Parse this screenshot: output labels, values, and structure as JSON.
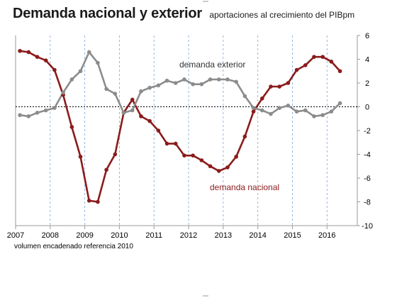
{
  "colors": {
    "nacional": "#8b1b1b",
    "exterior": "#8c8c8c",
    "gridline": "#7aa6d6",
    "zeroline": "#000000",
    "frame": "#9a9a9a"
  },
  "chart_data": {
    "type": "line",
    "title": "Demanda nacional y exterior",
    "subtitle": "aportaciones al crecimiento del PIBpm",
    "xlabel": "",
    "ylabel": "",
    "footnote": "volumen encadenado referencia 2010",
    "xlim": [
      2007.0,
      2016.875
    ],
    "ylim": [
      -10,
      6
    ],
    "y_ticks": [
      6,
      4,
      2,
      0,
      -2,
      -4,
      -6,
      -8,
      -10
    ],
    "year_ticks": [
      2007,
      2008,
      2009,
      2010,
      2011,
      2012,
      2013,
      2014,
      2015,
      2016
    ],
    "x_tick_labels": [
      "2007",
      "2008",
      "2009",
      "2010",
      "2011",
      "2012",
      "2013",
      "2014",
      "2015",
      "2016"
    ],
    "y_axis_side": "right",
    "grid": "vertical dashed at year boundaries",
    "reference_line": 0,
    "x_quarters": [
      2007.125,
      2007.375,
      2007.625,
      2007.875,
      2008.125,
      2008.375,
      2008.625,
      2008.875,
      2009.125,
      2009.375,
      2009.625,
      2009.875,
      2010.125,
      2010.375,
      2010.625,
      2010.875,
      2011.125,
      2011.375,
      2011.625,
      2011.875,
      2012.125,
      2012.375,
      2012.625,
      2012.875,
      2013.125,
      2013.375,
      2013.625,
      2013.875,
      2014.125,
      2014.375,
      2014.625,
      2014.875,
      2015.125,
      2015.375,
      2015.625,
      2015.875,
      2016.125,
      2016.375
    ],
    "series": [
      {
        "name": "demanda nacional",
        "color_key": "nacional",
        "values": [
          4.7,
          4.6,
          4.2,
          3.9,
          3.1,
          1.0,
          -1.7,
          -4.2,
          -7.9,
          -8.0,
          -5.3,
          -4.0,
          -0.5,
          0.6,
          -0.8,
          -1.2,
          -2.0,
          -3.1,
          -3.1,
          -4.1,
          -4.1,
          -4.5,
          -5.0,
          -5.4,
          -5.1,
          -4.2,
          -2.5,
          -0.4,
          0.7,
          1.7,
          1.7,
          2.0,
          3.1,
          3.5,
          4.2,
          4.2,
          3.8,
          3.0
        ]
      },
      {
        "name": "demanda exterior",
        "color_key": "exterior",
        "values": [
          -0.7,
          -0.8,
          -0.5,
          -0.3,
          -0.1,
          1.2,
          2.3,
          3.0,
          4.6,
          3.7,
          1.5,
          1.1,
          -0.5,
          -0.3,
          1.3,
          1.6,
          1.8,
          2.2,
          2.0,
          2.3,
          1.9,
          1.9,
          2.3,
          2.3,
          2.3,
          2.1,
          0.9,
          -0.1,
          -0.3,
          -0.6,
          -0.1,
          0.1,
          -0.4,
          -0.3,
          -0.8,
          -0.7,
          -0.4,
          0.3
        ]
      }
    ],
    "annotations": [
      {
        "text": "demanda exterior",
        "series_key": "exterior"
      },
      {
        "text": "demanda nacional",
        "series_key": "nacional"
      }
    ]
  }
}
